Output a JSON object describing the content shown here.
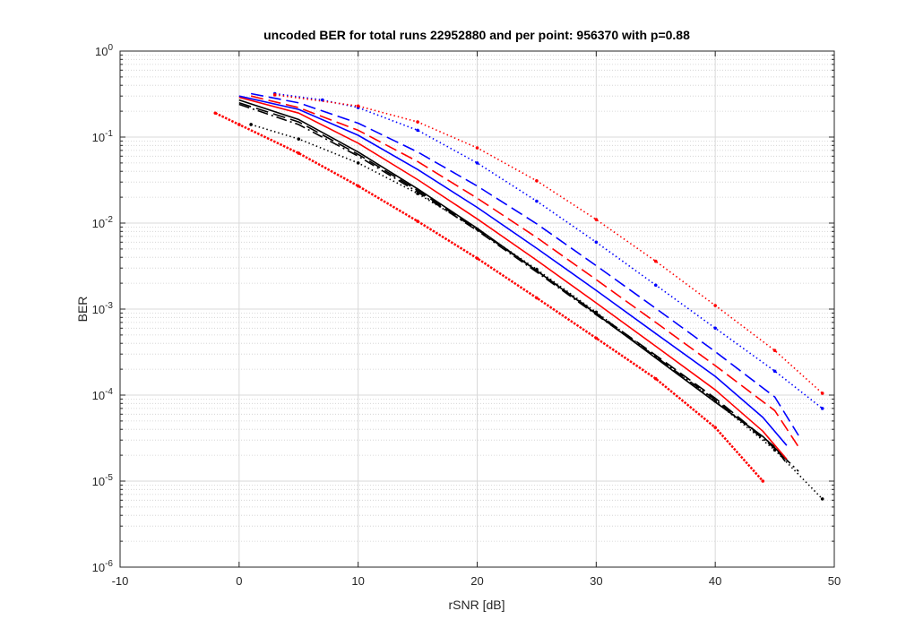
{
  "chart_data": {
    "type": "line",
    "title": "uncoded BER for total runs  22952880 and per point: 956370 with p=0.88",
    "xlabel": "rSNR [dB]",
    "ylabel": "BER",
    "xlim": [
      -10,
      50
    ],
    "ylim": [
      1e-06,
      1
    ],
    "yscale": "log",
    "grid": true,
    "minor_grid": true,
    "legend": "none",
    "x_ticks": [
      {
        "value": -10,
        "label": "-10"
      },
      {
        "value": 0,
        "label": "0"
      },
      {
        "value": 10,
        "label": "10"
      },
      {
        "value": 20,
        "label": "20"
      },
      {
        "value": 30,
        "label": "30"
      },
      {
        "value": 40,
        "label": "40"
      },
      {
        "value": 50,
        "label": "50"
      }
    ],
    "y_ticks": [
      {
        "exp": -6,
        "base": "10",
        "sup": "-6"
      },
      {
        "exp": -5,
        "base": "10",
        "sup": "-5"
      },
      {
        "exp": -4,
        "base": "10",
        "sup": "-4"
      },
      {
        "exp": -3,
        "base": "10",
        "sup": "-3"
      },
      {
        "exp": -2,
        "base": "10",
        "sup": "-2"
      },
      {
        "exp": -1,
        "base": "10",
        "sup": "-1"
      },
      {
        "exp": 0,
        "base": "10",
        "sup": "0"
      }
    ],
    "series": [
      {
        "color": "#ff0000",
        "style": "dotted-dense",
        "marker": true,
        "x": [
          -2,
          0,
          5,
          10,
          15,
          20,
          25,
          30,
          35,
          40,
          44
        ],
        "y": [
          0.19,
          0.14,
          0.065,
          0.027,
          0.0105,
          0.0039,
          0.00135,
          0.00046,
          0.000155,
          4.2e-05,
          1e-05
        ]
      },
      {
        "color": "#000000",
        "style": "dotted",
        "marker": true,
        "x": [
          1,
          5,
          10,
          15,
          20,
          25,
          30,
          35,
          40,
          45,
          49
        ],
        "y": [
          0.14,
          0.095,
          0.05,
          0.022,
          0.0085,
          0.0029,
          0.00092,
          0.00028,
          8.5e-05,
          2.3e-05,
          6.2e-06
        ]
      },
      {
        "color": "#000000",
        "style": "dashdot",
        "marker": false,
        "x": [
          0,
          5,
          10,
          15,
          20,
          25,
          30,
          35,
          40,
          45,
          47
        ],
        "y": [
          0.24,
          0.14,
          0.06,
          0.023,
          0.0082,
          0.0027,
          0.00086,
          0.00028,
          8.8e-05,
          2.4e-05,
          1.3e-05
        ]
      },
      {
        "color": "#000000",
        "style": "dashed",
        "marker": false,
        "x": [
          0,
          5,
          10,
          15,
          20,
          25,
          30,
          35,
          40,
          45,
          46
        ],
        "y": [
          0.25,
          0.15,
          0.063,
          0.024,
          0.0084,
          0.0028,
          0.0009,
          0.00029,
          9.2e-05,
          2.5e-05,
          1.6e-05
        ]
      },
      {
        "color": "#000000",
        "style": "solid",
        "marker": false,
        "x": [
          0,
          5,
          10,
          15,
          20,
          25,
          30,
          35,
          40,
          44,
          46
        ],
        "y": [
          0.27,
          0.16,
          0.067,
          0.025,
          0.0087,
          0.0028,
          0.00088,
          0.00027,
          8.3e-05,
          3.3e-05,
          1.8e-05
        ]
      },
      {
        "color": "#ff0000",
        "style": "solid",
        "marker": false,
        "x": [
          0,
          5,
          10,
          15,
          20,
          25,
          30,
          35,
          40,
          44,
          46
        ],
        "y": [
          0.29,
          0.19,
          0.085,
          0.032,
          0.0112,
          0.0037,
          0.00118,
          0.00037,
          0.000115,
          3.8e-05,
          1.8e-05
        ]
      },
      {
        "color": "#0000ff",
        "style": "solid",
        "marker": false,
        "x": [
          0,
          5,
          10,
          15,
          20,
          25,
          30,
          35,
          40,
          44,
          46
        ],
        "y": [
          0.3,
          0.21,
          0.105,
          0.042,
          0.0152,
          0.0051,
          0.00165,
          0.00052,
          0.000165,
          5.5e-05,
          2.6e-05
        ]
      },
      {
        "color": "#ff0000",
        "style": "dashed",
        "marker": false,
        "x": [
          1,
          5,
          10,
          15,
          20,
          25,
          30,
          35,
          40,
          45,
          47
        ],
        "y": [
          0.3,
          0.22,
          0.12,
          0.052,
          0.0195,
          0.0068,
          0.0022,
          0.0007,
          0.00022,
          6.6e-05,
          2.5e-05
        ]
      },
      {
        "color": "#0000ff",
        "style": "dashed",
        "marker": false,
        "x": [
          1,
          5,
          10,
          15,
          20,
          25,
          30,
          35,
          40,
          45,
          47
        ],
        "y": [
          0.32,
          0.25,
          0.145,
          0.067,
          0.027,
          0.0098,
          0.0032,
          0.00102,
          0.00032,
          9.5e-05,
          3.4e-05
        ]
      },
      {
        "color": "#0000ff",
        "style": "dotted",
        "marker": true,
        "x": [
          3,
          7,
          10,
          15,
          20,
          25,
          30,
          35,
          40,
          45,
          49
        ],
        "y": [
          0.32,
          0.27,
          0.22,
          0.12,
          0.05,
          0.018,
          0.006,
          0.0019,
          0.0006,
          0.00019,
          7e-05
        ]
      },
      {
        "color": "#ff0000",
        "style": "dotted",
        "marker": true,
        "x": [
          3,
          10,
          15,
          20,
          25,
          30,
          35,
          40,
          45,
          49
        ],
        "y": [
          0.31,
          0.23,
          0.15,
          0.075,
          0.031,
          0.011,
          0.0036,
          0.0011,
          0.00033,
          0.000105
        ]
      }
    ]
  }
}
